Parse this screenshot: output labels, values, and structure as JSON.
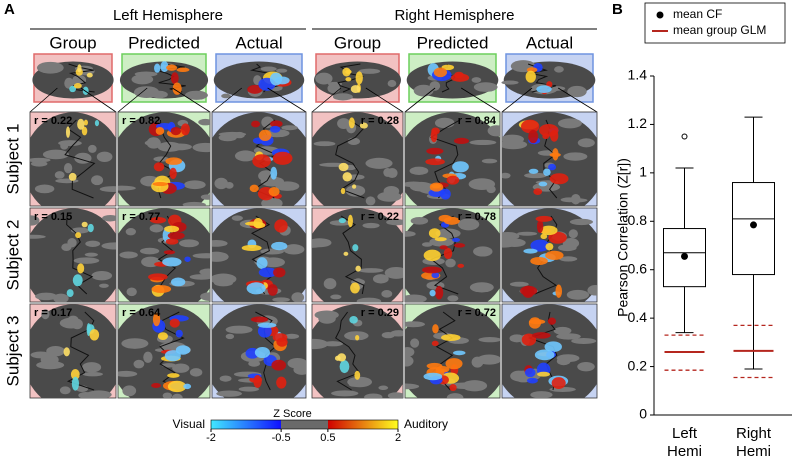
{
  "panel_a": {
    "label": "A",
    "hemispheres": [
      {
        "title": "Left Hemisphere",
        "columns": [
          "Group",
          "Predicted",
          "Actual"
        ]
      },
      {
        "title": "Right Hemisphere",
        "columns": [
          "Group",
          "Predicted",
          "Actual"
        ]
      }
    ],
    "rows": [
      {
        "label": "Subject 1",
        "r": [
          "r = 0.22",
          "r = 0.82",
          "r = 0.28",
          "r = 0.84"
        ]
      },
      {
        "label": "Subject 2",
        "r": [
          "r = 0.15",
          "r = 0.77",
          "r = 0.22",
          "r = 0.78"
        ]
      },
      {
        "label": "Subject 3",
        "r": [
          "r = 0.17",
          "r = 0.64",
          "r = 0.29",
          "r = 0.72"
        ]
      }
    ],
    "colorbar": {
      "title": "Z Score",
      "low_label": "Visual",
      "high_label": "Auditory",
      "lim": [
        -2,
        2
      ],
      "ticks": [
        -2,
        -0.5,
        0.5,
        2
      ]
    }
  },
  "chart_data": {
    "type": "box",
    "label": "B",
    "ylabel": "Pearson Correlation (Z[r])",
    "categories": [
      "Left Hemi",
      "Right Hemi"
    ],
    "whisker_low": [
      0.34,
      0.19
    ],
    "q1": [
      0.53,
      0.58
    ],
    "median": [
      0.67,
      0.81
    ],
    "q3": [
      0.77,
      0.96
    ],
    "whisker_high": [
      1.02,
      1.23
    ],
    "outliers": [
      [
        1.15
      ],
      []
    ],
    "series": [
      {
        "name": "mean CF",
        "color": "#000000",
        "values": [
          0.655,
          0.785
        ]
      },
      {
        "name": "mean group GLM",
        "color": "#b5261e",
        "values": [
          0.26,
          0.265
        ]
      }
    ],
    "glm_upper": [
      0.33,
      0.37
    ],
    "glm_lower": [
      0.185,
      0.155
    ],
    "ylim": [
      0,
      1.4
    ],
    "yticks": [
      0,
      0.2,
      0.4,
      0.6,
      0.8,
      1,
      1.2,
      1.4
    ]
  }
}
